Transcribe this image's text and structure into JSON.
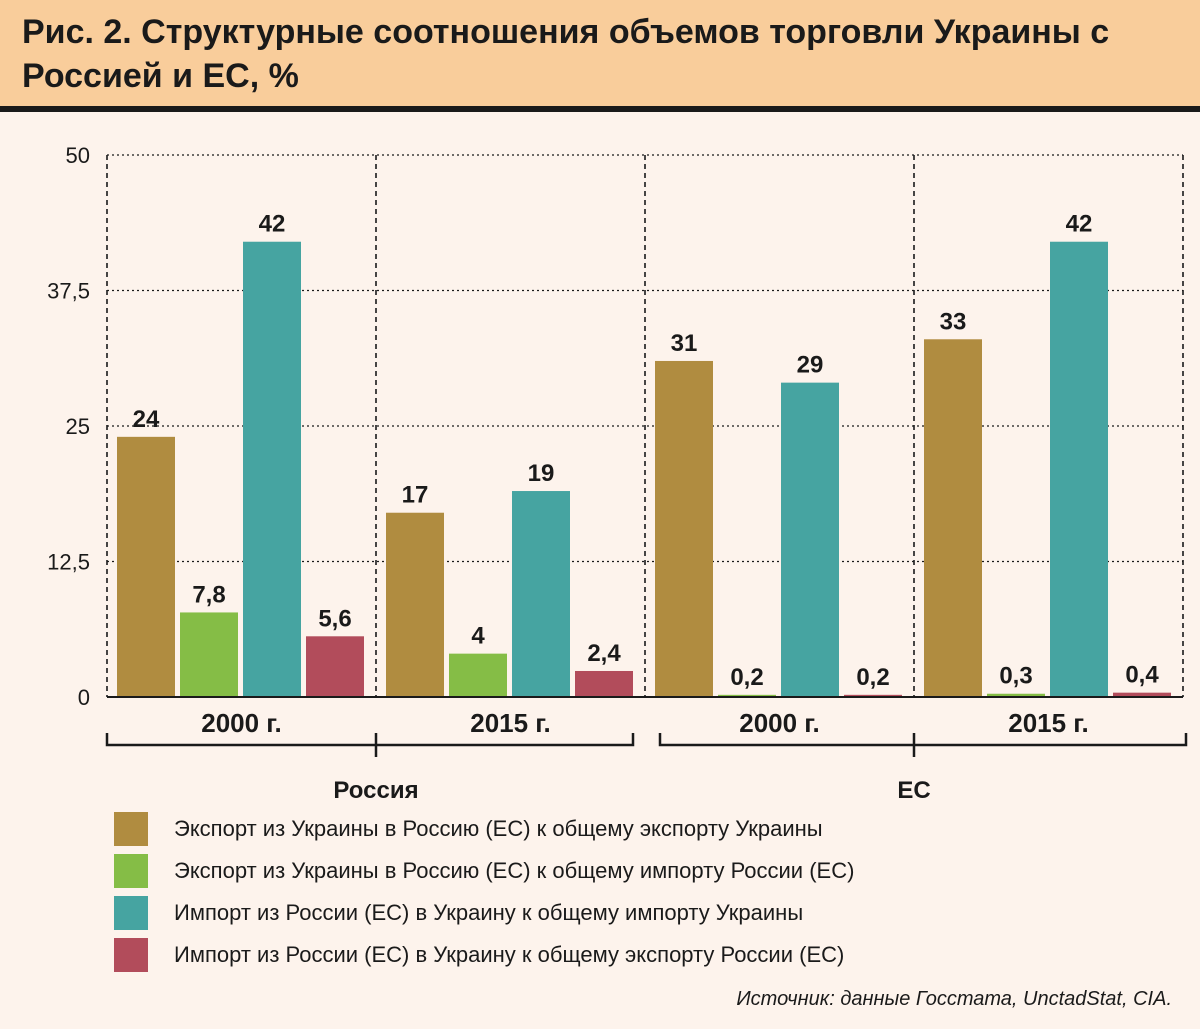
{
  "title": "Рис. 2. Структурные соотношения объемов торговли Украины с Россией и ЕС, %",
  "source": "Источник: данные Госстата, UnctadStat, CIA.",
  "colors": {
    "background": "#fdf3ec",
    "title_band": "#f9cd9b",
    "series": [
      "#b08c40",
      "#85bd46",
      "#46a4a1",
      "#b24c5b"
    ]
  },
  "chart_data": {
    "type": "bar",
    "ylim": [
      0,
      50
    ],
    "yticks": [
      "0",
      "12,5",
      "25",
      "37,5",
      "50"
    ],
    "yticks_values": [
      0,
      12.5,
      25,
      37.5,
      50
    ],
    "grid": true,
    "groups": [
      {
        "name": "Россия",
        "periods": [
          "2000 г.",
          "2015 г."
        ]
      },
      {
        "name": "ЕС",
        "periods": [
          "2000 г.",
          "2015 г."
        ]
      }
    ],
    "categories": [
      "2000 г.",
      "2015 г.",
      "2000 г.",
      "2015 г."
    ],
    "series": [
      {
        "name": "Экспорт из Украины в Россию (ЕС) к общему экспорту Украины",
        "values": [
          24,
          17,
          31,
          33
        ],
        "labels": [
          "24",
          "17",
          "31",
          "33"
        ]
      },
      {
        "name": "Экспорт из Украины в Россию (ЕС) к общему импорту России (ЕС)",
        "values": [
          7.8,
          4,
          0.2,
          0.3
        ],
        "labels": [
          "7,8",
          "4",
          "0,2",
          "0,3"
        ]
      },
      {
        "name": "Импорт из России (ЕС) в Украину к общему импорту Украины",
        "values": [
          42,
          19,
          29,
          42
        ],
        "labels": [
          "42",
          "19",
          "29",
          "42"
        ]
      },
      {
        "name": "Импорт из России (ЕС) в Украину к общему экспорту России (ЕС)",
        "values": [
          5.6,
          2.4,
          0.2,
          0.4
        ],
        "labels": [
          "5,6",
          "2,4",
          "0,2",
          "0,4"
        ]
      }
    ],
    "legend_position": "bottom"
  }
}
